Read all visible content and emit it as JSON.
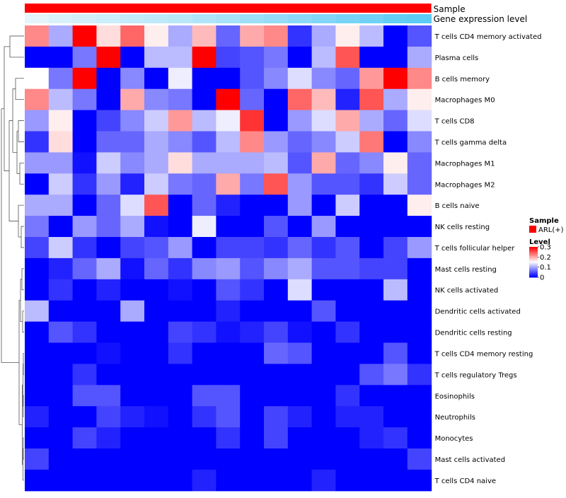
{
  "chart_data": {
    "type": "heatmap",
    "annotations": {
      "sample": "Sample",
      "gene_expression": "Gene expression level"
    },
    "rows": [
      "T cells CD4 memory activated",
      "Plasma cells",
      "B cells memory",
      "Macrophages M0",
      "T cells CD8",
      "T cells gamma delta",
      "Macrophages M1",
      "Macrophages M2",
      "B cells naive",
      "NK cells resting",
      "T cells follicular helper",
      "Mast cells resting",
      "NK cells activated",
      "Dendritic cells activated",
      "Dendritic cells resting",
      "T cells CD4 memory resting",
      "T cells regulatory  Tregs",
      "Eosinophils",
      "Neutrophils",
      "Monocytes",
      "Mast cells activated",
      "T cells CD4 naive"
    ],
    "values": [
      [
        0.22,
        0.1,
        0.3,
        0.17,
        0.24,
        0.16,
        0.1,
        0.19,
        0.06,
        0.2,
        0.22,
        0.03,
        0.1,
        0.16,
        0.11,
        0.0,
        0.05
      ],
      [
        0.0,
        0.0,
        0.07,
        0.3,
        0.0,
        0.11,
        0.11,
        0.3,
        0.04,
        0.05,
        0.07,
        0.0,
        0.11,
        0.25,
        0.0,
        0.0,
        0.1
      ],
      [
        0.15,
        0.07,
        0.3,
        0.0,
        0.08,
        0.0,
        0.14,
        0.0,
        0.0,
        0.05,
        0.08,
        0.13,
        0.08,
        0.06,
        0.21,
        0.3,
        0.22
      ],
      [
        0.22,
        0.11,
        0.07,
        0.0,
        0.2,
        0.08,
        0.07,
        0.0,
        0.3,
        0.06,
        0.0,
        0.24,
        0.19,
        0.02,
        0.25,
        0.1,
        0.16
      ],
      [
        0.09,
        0.16,
        0.0,
        0.04,
        0.08,
        0.12,
        0.21,
        0.11,
        0.14,
        0.27,
        0.0,
        0.09,
        0.13,
        0.2,
        0.1,
        0.06,
        0.13
      ],
      [
        0.03,
        0.17,
        0.0,
        0.06,
        0.06,
        0.1,
        0.08,
        0.05,
        0.11,
        0.22,
        0.09,
        0.06,
        0.08,
        0.12,
        0.23,
        0.0,
        0.08
      ],
      [
        0.09,
        0.09,
        0.01,
        0.12,
        0.08,
        0.1,
        0.17,
        0.1,
        0.1,
        0.1,
        0.11,
        0.05,
        0.2,
        0.06,
        0.08,
        0.16,
        0.06
      ],
      [
        0.0,
        0.12,
        0.03,
        0.09,
        0.02,
        0.12,
        0.07,
        0.06,
        0.2,
        0.07,
        0.25,
        0.09,
        0.05,
        0.05,
        0.03,
        0.12,
        0.06
      ],
      [
        0.1,
        0.1,
        0.0,
        0.06,
        0.13,
        0.25,
        0.0,
        0.06,
        0.02,
        0.0,
        0.0,
        0.09,
        0.0,
        0.12,
        0.0,
        0.0,
        0.16
      ],
      [
        0.07,
        0.0,
        0.09,
        0.06,
        0.1,
        0.01,
        0.0,
        0.14,
        0.0,
        0.0,
        0.05,
        0.0,
        0.09,
        0.0,
        0.0,
        0.0,
        0.0
      ],
      [
        0.04,
        0.12,
        0.03,
        0.0,
        0.04,
        0.05,
        0.09,
        0.0,
        0.04,
        0.04,
        0.03,
        0.06,
        0.03,
        0.05,
        0.0,
        0.04,
        0.09
      ],
      [
        0.0,
        0.02,
        0.06,
        0.1,
        0.01,
        0.06,
        0.03,
        0.08,
        0.09,
        0.05,
        0.08,
        0.1,
        0.05,
        0.05,
        0.04,
        0.04,
        0.0
      ],
      [
        0.0,
        0.03,
        0.0,
        0.02,
        0.0,
        0.0,
        0.01,
        0.0,
        0.05,
        0.03,
        0.0,
        0.13,
        0.0,
        0.0,
        0.0,
        0.11,
        0.0
      ],
      [
        0.11,
        0.0,
        0.0,
        0.0,
        0.1,
        0.0,
        0.0,
        0.0,
        0.02,
        0.0,
        0.0,
        0.0,
        0.05,
        0.0,
        0.0,
        0.0,
        0.0
      ],
      [
        0.0,
        0.05,
        0.03,
        0.0,
        0.0,
        0.0,
        0.04,
        0.03,
        0.01,
        0.02,
        0.04,
        0.01,
        0.0,
        0.03,
        0.0,
        0.0,
        0.0
      ],
      [
        0.0,
        0.0,
        0.0,
        0.01,
        0.0,
        0.0,
        0.03,
        0.0,
        0.0,
        0.0,
        0.06,
        0.05,
        0.0,
        0.0,
        0.0,
        0.05,
        0.0
      ],
      [
        0.0,
        0.0,
        0.03,
        0.0,
        0.0,
        0.0,
        0.0,
        0.0,
        0.0,
        0.0,
        0.0,
        0.0,
        0.0,
        0.0,
        0.05,
        0.07,
        0.03
      ],
      [
        0.0,
        0.0,
        0.05,
        0.05,
        0.0,
        0.0,
        0.0,
        0.05,
        0.05,
        0.0,
        0.0,
        0.0,
        0.0,
        0.03,
        0.0,
        0.0,
        0.0
      ],
      [
        0.02,
        0.0,
        0.0,
        0.04,
        0.02,
        0.01,
        0.0,
        0.03,
        0.05,
        0.0,
        0.04,
        0.02,
        0.0,
        0.02,
        0.02,
        0.0,
        0.0
      ],
      [
        0.0,
        0.0,
        0.04,
        0.02,
        0.0,
        0.0,
        0.0,
        0.0,
        0.03,
        0.0,
        0.04,
        0.0,
        0.0,
        0.0,
        0.02,
        0.03,
        0.0
      ],
      [
        0.04,
        0.0,
        0.0,
        0.0,
        0.0,
        0.0,
        0.0,
        0.0,
        0.0,
        0.0,
        0.0,
        0.0,
        0.0,
        0.0,
        0.0,
        0.0,
        0.04
      ],
      [
        0.0,
        0.0,
        0.0,
        0.0,
        0.0,
        0.0,
        0.0,
        0.02,
        0.0,
        0.0,
        0.0,
        0.0,
        0.02,
        0.0,
        0.0,
        0.0,
        0.0
      ]
    ],
    "expression_levels": [
      0.02,
      0.08,
      0.12,
      0.15,
      0.2,
      0.22,
      0.25,
      0.3,
      0.35,
      0.4,
      0.45,
      0.5,
      0.55,
      0.6,
      0.65,
      0.72,
      0.75
    ],
    "legend": {
      "sample_title": "Sample",
      "sample_label": "ARL(+)",
      "level_title": "Level",
      "ticks": [
        "0.3",
        "0.2",
        "0.1",
        "0"
      ],
      "tick_values": [
        0.3,
        0.2,
        0.1,
        0.0
      ]
    },
    "scale": {
      "min": 0,
      "mid": 0.15,
      "max": 0.3
    }
  },
  "colors": {
    "low": "#0000ff",
    "mid": "#ffffff",
    "high": "#ff0000",
    "sample": "#ff0000",
    "gene_light": "#e8f6fb",
    "gene_dark": "#5ccbf5",
    "dendro": "#555555"
  }
}
